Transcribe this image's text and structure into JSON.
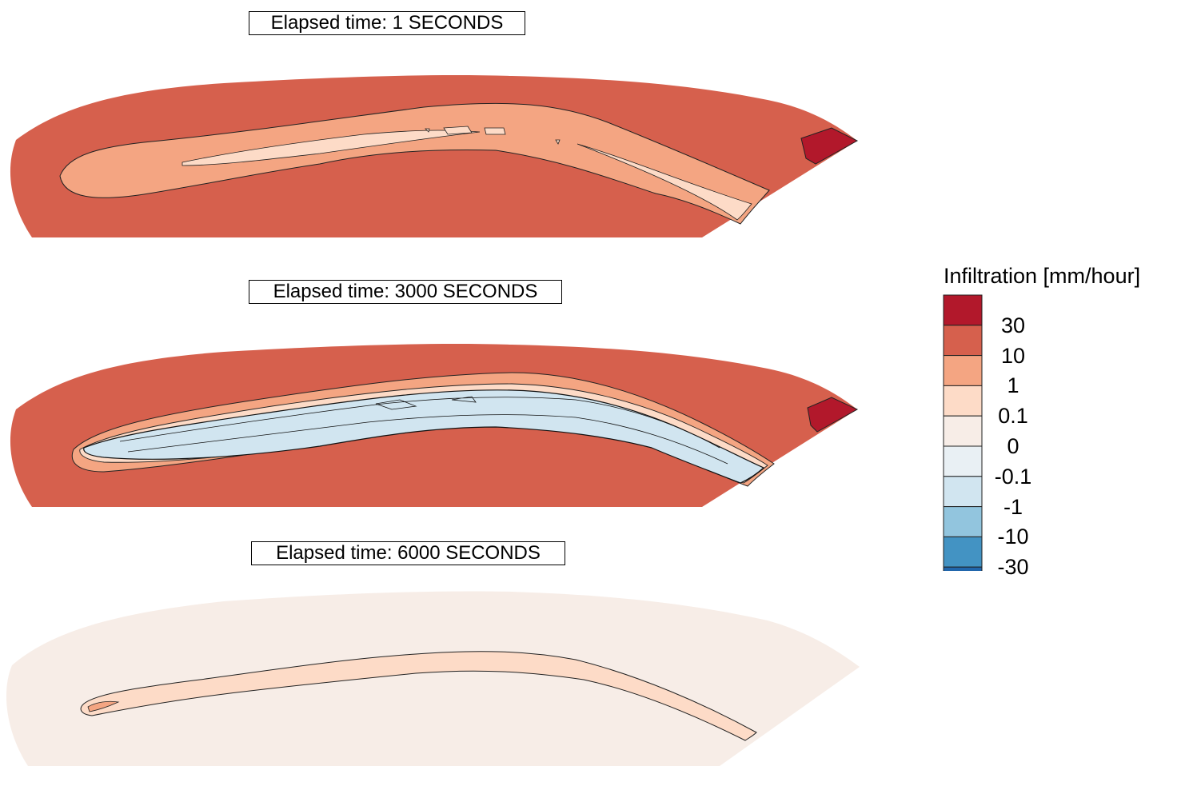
{
  "panels": [
    {
      "title": "Elapsed time: 1 SECONDS"
    },
    {
      "title": "Elapsed time: 3000 SECONDS"
    },
    {
      "title": "Elapsed time: 6000 SECONDS"
    }
  ],
  "legend": {
    "title": "Infiltration [mm/hour]",
    "labels": [
      "30",
      "10",
      "1",
      "0.1",
      "0",
      "-0.1",
      "-1",
      "-10",
      "-30"
    ],
    "colors": [
      "#b2182b",
      "#d6604d",
      "#f4a582",
      "#fddbc7",
      "#f7ede7",
      "#e9f0f4",
      "#d1e5f0",
      "#92c5de",
      "#4393c3",
      "#2166ac"
    ]
  },
  "colors": {
    "high_10_30": "#d6604d",
    "mid_1_10": "#f4a582",
    "low_0_1_1": "#fddbc7",
    "near_zero": "#f7ede7",
    "neg_0_1": "#d1e5f0",
    "max_30": "#b2182b"
  }
}
